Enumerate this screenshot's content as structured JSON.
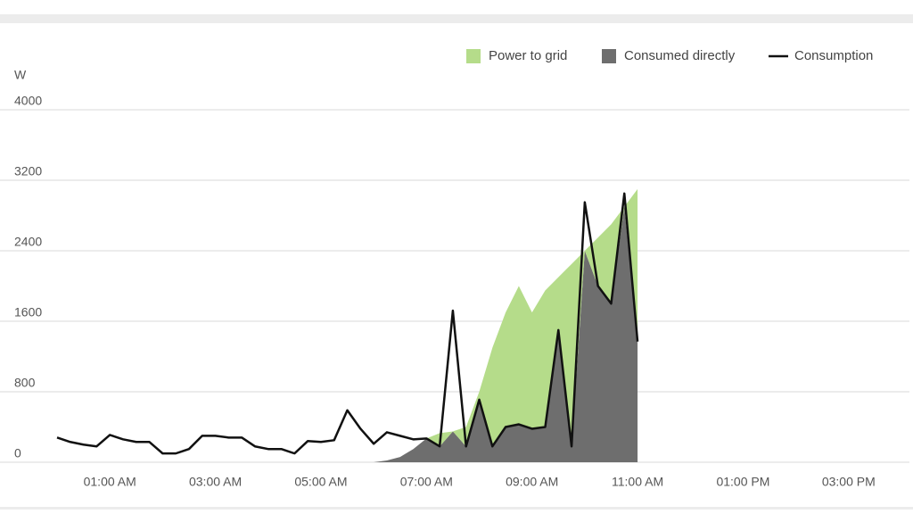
{
  "chart_data": {
    "type": "area",
    "y_label": "W",
    "x": [
      0,
      0.25,
      0.5,
      0.75,
      1,
      1.25,
      1.5,
      1.75,
      2,
      2.25,
      2.5,
      2.75,
      3,
      3.25,
      3.5,
      3.75,
      4,
      4.25,
      4.5,
      4.75,
      5,
      5.25,
      5.5,
      5.75,
      6,
      6.25,
      6.5,
      6.75,
      7,
      7.25,
      7.5,
      7.75,
      8,
      8.25,
      8.5,
      8.75,
      9,
      9.25,
      9.5,
      9.75,
      10,
      10.25,
      10.5,
      10.75,
      11
    ],
    "series": [
      {
        "name": "Consumed directly",
        "type": "area",
        "color": "#6e6e6e",
        "values": [
          0,
          0,
          0,
          0,
          0,
          0,
          0,
          0,
          0,
          0,
          0,
          0,
          0,
          0,
          0,
          0,
          0,
          0,
          0,
          0,
          0,
          0,
          0,
          0,
          0,
          20,
          60,
          150,
          270,
          180,
          350,
          180,
          710,
          180,
          400,
          430,
          380,
          400,
          1500,
          180,
          2400,
          2000,
          1800,
          2900,
          1370
        ]
      },
      {
        "name": "Power to grid",
        "type": "area",
        "color": "#b5dc8a",
        "values": [
          0,
          0,
          0,
          0,
          0,
          0,
          0,
          0,
          0,
          0,
          0,
          0,
          0,
          0,
          0,
          0,
          0,
          0,
          0,
          0,
          0,
          0,
          0,
          0,
          0,
          0,
          0,
          0,
          0,
          150,
          0,
          220,
          90,
          1120,
          1300,
          1570,
          1320,
          1550,
          600,
          2070,
          0,
          550,
          900,
          0,
          1730
        ]
      },
      {
        "name": "Consumption",
        "type": "line",
        "color": "#111111",
        "values": [
          280,
          230,
          200,
          180,
          310,
          260,
          230,
          230,
          100,
          100,
          150,
          300,
          300,
          280,
          280,
          180,
          150,
          150,
          100,
          240,
          230,
          250,
          590,
          380,
          210,
          340,
          300,
          260,
          270,
          180,
          1720,
          180,
          710,
          180,
          400,
          430,
          380,
          400,
          1500,
          180,
          2950,
          2000,
          1800,
          3050,
          1370
        ]
      }
    ],
    "legend_order": [
      1,
      0,
      2
    ],
    "legend_position": "top-right",
    "stacked": true,
    "grid": true,
    "xlim": [
      0,
      16
    ],
    "ylim": [
      0,
      4000
    ],
    "xticks": [
      {
        "value": 1,
        "label": "01:00 AM"
      },
      {
        "value": 3,
        "label": "03:00 AM"
      },
      {
        "value": 5,
        "label": "05:00 AM"
      },
      {
        "value": 7,
        "label": "07:00 AM"
      },
      {
        "value": 9,
        "label": "09:00 AM"
      },
      {
        "value": 11,
        "label": "11:00 AM"
      },
      {
        "value": 13,
        "label": "01:00 PM"
      },
      {
        "value": 15,
        "label": "03:00 PM"
      }
    ],
    "yticks": [
      0,
      800,
      1600,
      2400,
      3200,
      4000
    ]
  }
}
